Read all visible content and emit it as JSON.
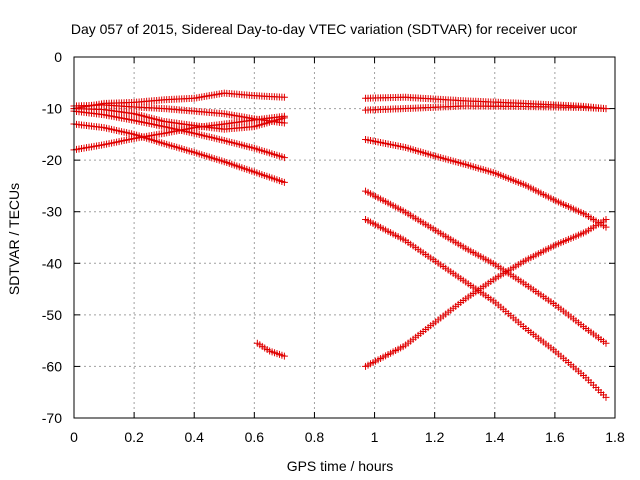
{
  "chart_data": {
    "type": "scatter",
    "title": "Day 057 of 2015, Sidereal Day-to-day VTEC variation (SDTVAR) for receiver ucor",
    "xlabel": "GPS time / hours",
    "ylabel": "SDTVAR / TECUs",
    "xlim": [
      0,
      1.8
    ],
    "ylim": [
      -70,
      0
    ],
    "xticks": [
      0,
      0.2,
      0.4,
      0.6,
      0.8,
      1,
      1.2,
      1.4,
      1.6,
      1.8
    ],
    "yticks": [
      0,
      -10,
      -20,
      -30,
      -40,
      -50,
      -60,
      -70
    ],
    "xtick_labels": [
      "0",
      "0.2",
      "0.4",
      "0.6",
      "0.8",
      "1",
      "1.2",
      "1.4",
      "1.6",
      "1.8"
    ],
    "ytick_labels": [
      "0",
      "-10",
      "-20",
      "-30",
      "-40",
      "-50",
      "-60",
      "-70"
    ],
    "grid": true,
    "marker": "+",
    "color": "#e00000",
    "sample_step": 0.0083,
    "series": [
      {
        "name": "s1",
        "segments": [
          {
            "x": [
              0,
              0.1,
              0.2,
              0.3,
              0.4,
              0.5,
              0.6,
              0.7
            ],
            "y": [
              -10,
              -9,
              -8.8,
              -8.3,
              -8,
              -7,
              -7.5,
              -7.8
            ]
          },
          {
            "x": [
              0.97,
              1.1,
              1.3,
              1.5,
              1.6,
              1.7,
              1.77
            ],
            "y": [
              -8,
              -7.8,
              -8.5,
              -9,
              -9.3,
              -9.6,
              -10
            ]
          }
        ]
      },
      {
        "name": "s2",
        "segments": [
          {
            "x": [
              0,
              0.1,
              0.2,
              0.3,
              0.4,
              0.5,
              0.6,
              0.7
            ],
            "y": [
              -9.5,
              -9.3,
              -9.7,
              -10,
              -10.5,
              -11,
              -12,
              -12.8
            ]
          },
          {
            "x": [
              0.97,
              1.1,
              1.3,
              1.5,
              1.7,
              1.77
            ],
            "y": [
              -10.3,
              -10,
              -9.5,
              -9.6,
              -9.8,
              -10
            ]
          }
        ]
      },
      {
        "name": "s3",
        "segments": [
          {
            "x": [
              0,
              0.1,
              0.2,
              0.3,
              0.4,
              0.5,
              0.6,
              0.7
            ],
            "y": [
              -10.5,
              -11.2,
              -12.3,
              -13.5,
              -14.8,
              -16.2,
              -17.7,
              -19.5
            ]
          }
        ]
      },
      {
        "name": "s4",
        "segments": [
          {
            "x": [
              0,
              0.1,
              0.2,
              0.3,
              0.4,
              0.5,
              0.6,
              0.7
            ],
            "y": [
              -13,
              -13.7,
              -15,
              -16.8,
              -18.5,
              -20.3,
              -22.3,
              -24.3
            ]
          }
        ]
      },
      {
        "name": "s5",
        "segments": [
          {
            "x": [
              0,
              0.1,
              0.2,
              0.3,
              0.4,
              0.5,
              0.6,
              0.7
            ],
            "y": [
              -18,
              -17,
              -15.8,
              -14.8,
              -13.7,
              -13,
              -12.2,
              -11.5
            ]
          }
        ]
      },
      {
        "name": "s6",
        "segments": [
          {
            "x": [
              0,
              0.1,
              0.2,
              0.3,
              0.4,
              0.5,
              0.6,
              0.7
            ],
            "y": [
              -10,
              -10.2,
              -11,
              -12.5,
              -13.3,
              -14,
              -13.5,
              -11.8
            ]
          }
        ]
      },
      {
        "name": "s7",
        "segments": [
          {
            "x": [
              0.61,
              0.65,
              0.7
            ],
            "y": [
              -55.5,
              -57,
              -58
            ]
          }
        ]
      },
      {
        "name": "s8",
        "segments": [
          {
            "x": [
              0.97,
              1.1,
              1.2,
              1.3,
              1.4,
              1.5,
              1.6,
              1.7,
              1.77
            ],
            "y": [
              -16,
              -17.5,
              -19.2,
              -20.8,
              -22.5,
              -24.8,
              -27.8,
              -30.5,
              -33
            ]
          }
        ]
      },
      {
        "name": "s9",
        "segments": [
          {
            "x": [
              0.97,
              1.1,
              1.2,
              1.3,
              1.4,
              1.5,
              1.6,
              1.7,
              1.77
            ],
            "y": [
              -26,
              -30,
              -33.5,
              -37,
              -40.2,
              -44,
              -48,
              -52.5,
              -55.5
            ]
          }
        ]
      },
      {
        "name": "s10",
        "segments": [
          {
            "x": [
              0.97,
              1.1,
              1.2,
              1.3,
              1.4,
              1.5,
              1.6,
              1.7,
              1.77
            ],
            "y": [
              -31.5,
              -35.5,
              -39.5,
              -43.5,
              -47.5,
              -52.5,
              -57,
              -62,
              -66
            ]
          }
        ]
      },
      {
        "name": "s11",
        "segments": [
          {
            "x": [
              0.97,
              1.1,
              1.2,
              1.3,
              1.4,
              1.5,
              1.6,
              1.7,
              1.77
            ],
            "y": [
              -60,
              -56,
              -51.5,
              -47,
              -43,
              -39.5,
              -36.5,
              -34,
              -31.5
            ]
          }
        ]
      }
    ]
  }
}
